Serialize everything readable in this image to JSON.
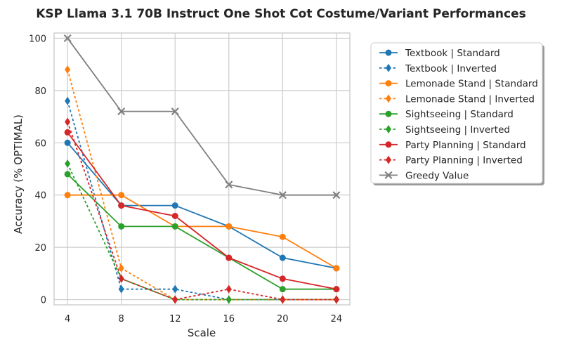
{
  "chart_data": {
    "type": "line",
    "title": "KSP Llama 3.1 70B Instruct One Shot Cot Costume/Variant Performances",
    "xlabel": "Scale",
    "ylabel": "Accuracy (% OPTIMAL)",
    "x": [
      4,
      8,
      12,
      16,
      20,
      24
    ],
    "xlim": [
      3,
      25
    ],
    "ylim": [
      -2,
      102
    ],
    "xticks": [
      4,
      8,
      12,
      16,
      20,
      24
    ],
    "yticks": [
      0,
      20,
      40,
      60,
      80,
      100
    ],
    "grid": true,
    "legend_position": "outside-right",
    "series": [
      {
        "name": "Textbook | Standard",
        "values": [
          60,
          36,
          36,
          28,
          16,
          12
        ],
        "color": "#1f77b4",
        "dashed": false,
        "marker": "circle"
      },
      {
        "name": "Textbook | Inverted",
        "values": [
          76,
          4,
          4,
          0,
          0,
          0
        ],
        "color": "#1f77b4",
        "dashed": true,
        "marker": "diamond"
      },
      {
        "name": "Lemonade Stand | Standard",
        "values": [
          40,
          40,
          28,
          28,
          24,
          12
        ],
        "color": "#ff7f0e",
        "dashed": false,
        "marker": "circle"
      },
      {
        "name": "Lemonade Stand | Inverted",
        "values": [
          88,
          12,
          0,
          0,
          0,
          0
        ],
        "color": "#ff7f0e",
        "dashed": true,
        "marker": "diamond"
      },
      {
        "name": "Sightseeing | Standard",
        "values": [
          48,
          28,
          28,
          16,
          4,
          4
        ],
        "color": "#2ca02c",
        "dashed": false,
        "marker": "circle"
      },
      {
        "name": "Sightseeing | Inverted",
        "values": [
          52,
          8,
          0,
          0,
          0,
          0
        ],
        "color": "#2ca02c",
        "dashed": true,
        "marker": "diamond"
      },
      {
        "name": "Party Planning | Standard",
        "values": [
          64,
          36,
          32,
          16,
          8,
          4
        ],
        "color": "#d62728",
        "dashed": false,
        "marker": "circle"
      },
      {
        "name": "Party Planning | Inverted",
        "values": [
          68,
          8,
          0,
          4,
          0,
          0
        ],
        "color": "#d62728",
        "dashed": true,
        "marker": "diamond"
      },
      {
        "name": "Greedy Value",
        "values": [
          100,
          72,
          72,
          44,
          40,
          40
        ],
        "color": "#7f7f7f",
        "dashed": false,
        "marker": "x"
      }
    ]
  }
}
